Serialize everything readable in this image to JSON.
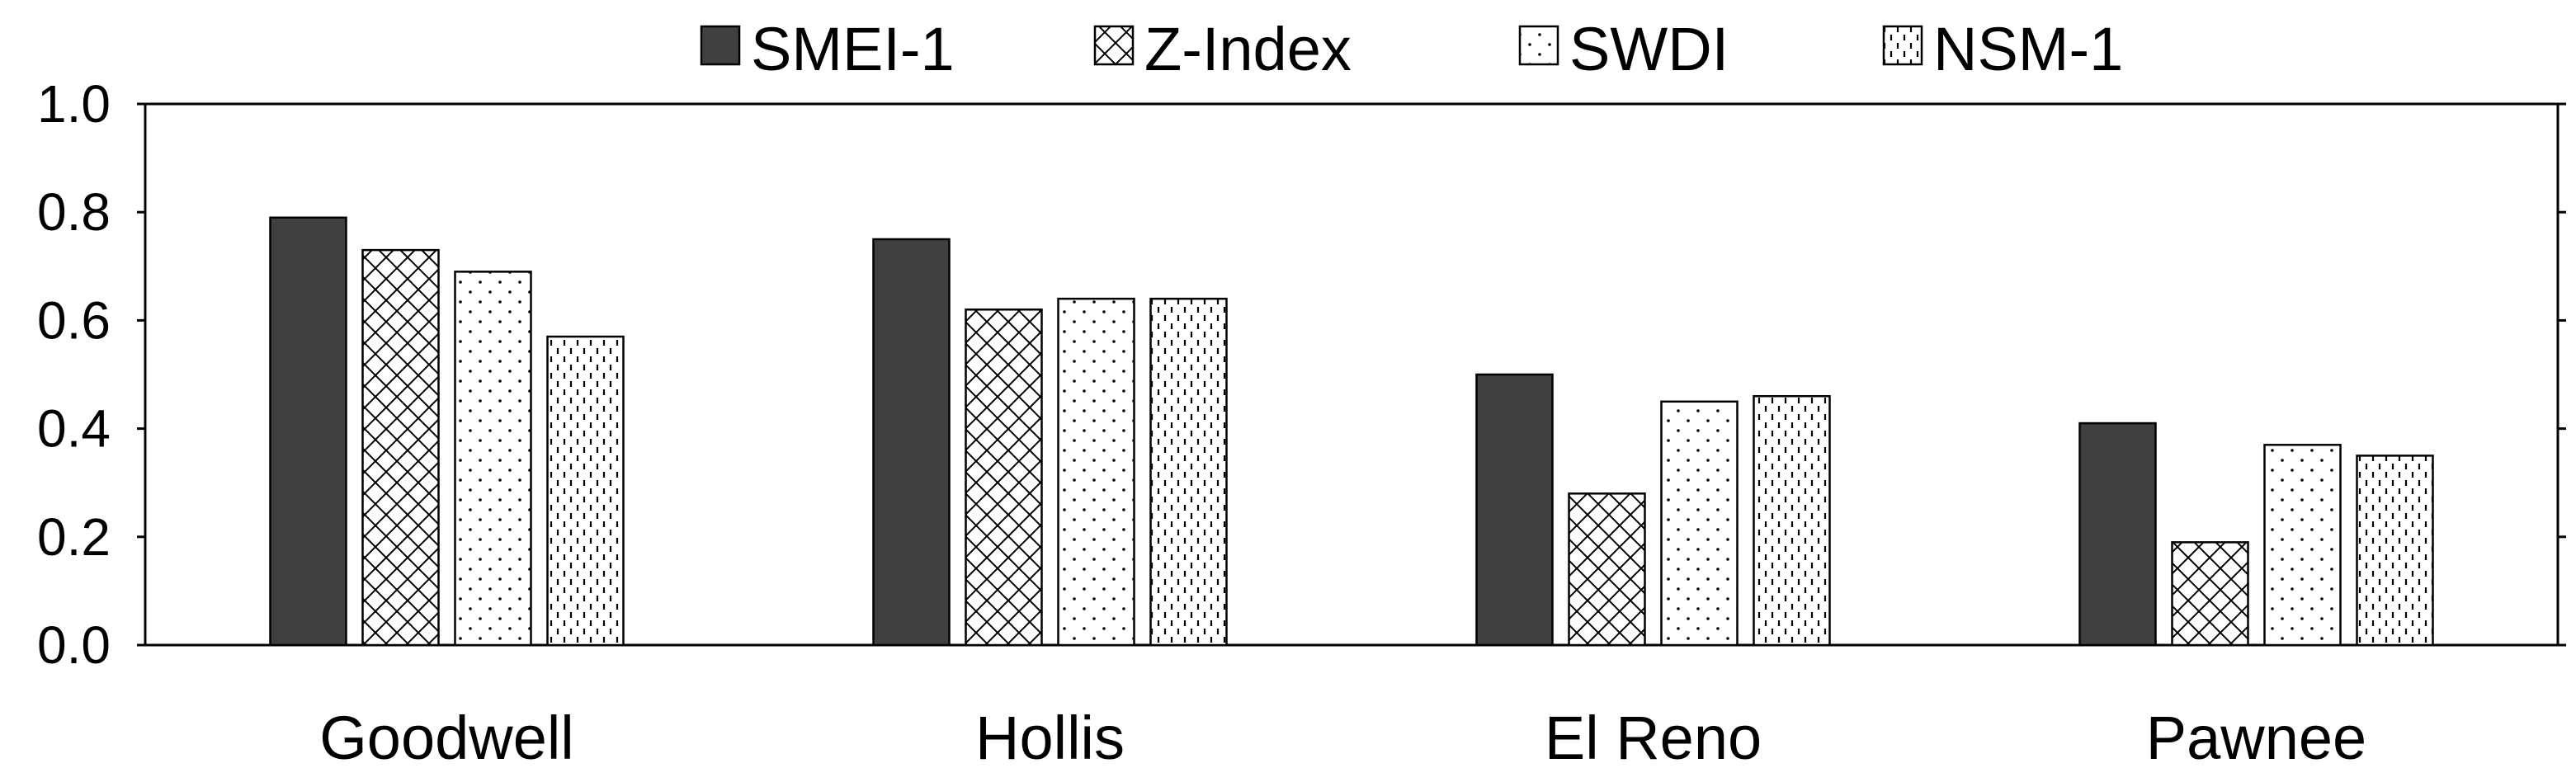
{
  "chart_data": {
    "type": "bar",
    "categories": [
      "Goodwell",
      "Hollis",
      "El Reno",
      "Pawnee"
    ],
    "series": [
      {
        "name": "SMEI-1",
        "pattern": "solid",
        "color": "#404040",
        "values": [
          0.79,
          0.75,
          0.5,
          0.41
        ]
      },
      {
        "name": "Z-Index",
        "pattern": "crosshatch",
        "color": "#000000",
        "values": [
          0.73,
          0.62,
          0.28,
          0.19
        ]
      },
      {
        "name": "SWDI",
        "pattern": "dots",
        "color": "#000000",
        "values": [
          0.69,
          0.64,
          0.45,
          0.37
        ]
      },
      {
        "name": "NSM-1",
        "pattern": "dashes",
        "color": "#000000",
        "values": [
          0.57,
          0.64,
          0.46,
          0.35
        ]
      }
    ],
    "title": "",
    "xlabel": "",
    "ylabel": "",
    "ylim": [
      0,
      1.0
    ],
    "yticks": [
      "0.0",
      "0.2",
      "0.4",
      "0.6",
      "0.8",
      "1.0"
    ],
    "grid": false,
    "legend": "top"
  }
}
